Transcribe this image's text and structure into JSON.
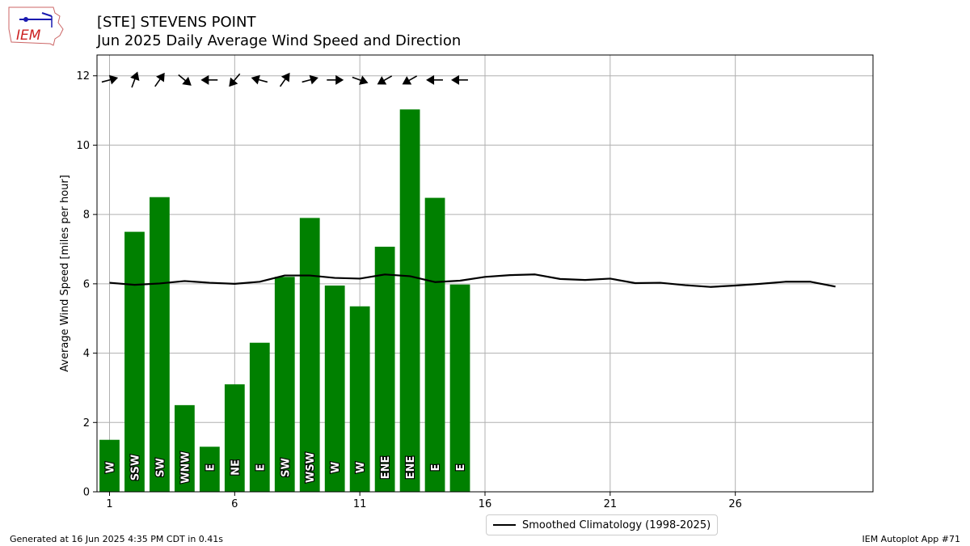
{
  "header": {
    "title_line1": "[STE] STEVENS POINT",
    "title_line2": "Jun 2025 Daily Average Wind Speed and Direction"
  },
  "logo": {
    "text": "IEM",
    "icon": "iem-logo-icon"
  },
  "footer": {
    "left": "Generated at 16 Jun 2025 4:35 PM CDT in 0.41s",
    "right": "IEM Autoplot App #71"
  },
  "colors": {
    "bar": "#008000",
    "clim": "#000000",
    "grid": "#b0b0b0",
    "logo_text": "#cc2222",
    "logo_icon": "#1a1ab0"
  },
  "chart_data": {
    "type": "bar",
    "ylabel": "Average Wind Speed [miles per hour]",
    "xlim": [
      0.5,
      31.5
    ],
    "ylim": [
      0,
      12.6
    ],
    "xticks": [
      1,
      6,
      11,
      16,
      21,
      26
    ],
    "yticks": [
      0,
      2,
      4,
      6,
      8,
      10,
      12
    ],
    "grid": true,
    "legend_position": "bottom-center",
    "series": [
      {
        "kind": "bar",
        "days": [
          1,
          2,
          3,
          4,
          5,
          6,
          7,
          8,
          9,
          10,
          11,
          12,
          13,
          14,
          15
        ],
        "values": [
          1.5,
          7.5,
          8.5,
          2.5,
          1.3,
          3.1,
          4.3,
          6.2,
          7.9,
          5.95,
          5.35,
          7.07,
          11.03,
          8.48,
          5.98
        ],
        "direction_labels": [
          "W",
          "SSW",
          "SW",
          "WNW",
          "E",
          "NE",
          "E",
          "SW",
          "WSW",
          "W",
          "W",
          "ENE",
          "ENE",
          "E",
          "E"
        ],
        "arrow_angles_deg": [
          15,
          70,
          55,
          -40,
          180,
          -130,
          165,
          55,
          15,
          0,
          -20,
          210,
          210,
          180,
          180
        ]
      },
      {
        "kind": "line",
        "name": "Smoothed Climatology (1998-2025)",
        "x": [
          1,
          2,
          3,
          4,
          5,
          6,
          7,
          8,
          9,
          10,
          11,
          12,
          13,
          14,
          15,
          16,
          17,
          18,
          19,
          20,
          21,
          22,
          23,
          24,
          25,
          26,
          27,
          28,
          29,
          30
        ],
        "values": [
          6.03,
          5.97,
          6.01,
          6.08,
          6.03,
          6.0,
          6.06,
          6.24,
          6.24,
          6.17,
          6.15,
          6.27,
          6.22,
          6.05,
          6.09,
          6.2,
          6.25,
          6.27,
          6.14,
          6.11,
          6.15,
          6.02,
          6.03,
          5.96,
          5.91,
          5.95,
          6.0,
          6.06,
          6.06,
          5.92
        ]
      }
    ]
  }
}
